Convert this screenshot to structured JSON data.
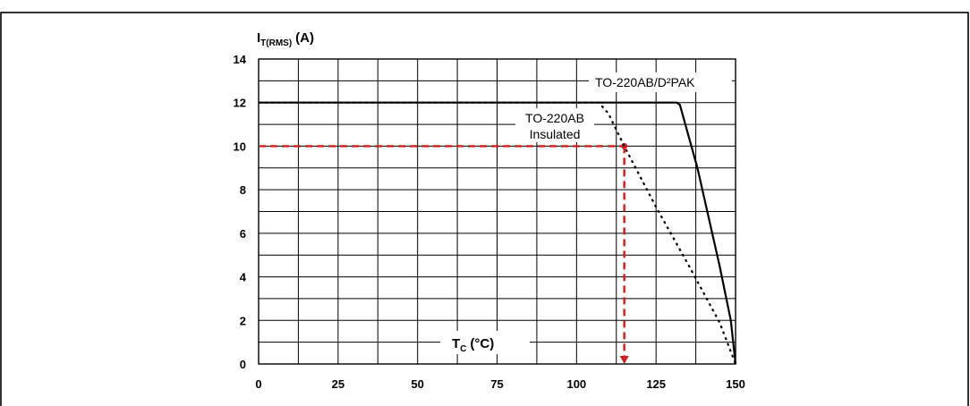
{
  "chart_data": {
    "type": "line",
    "title": "",
    "xlabel": "T",
    "xlabel_sub": "C",
    "xlabel_unit": "(°C)",
    "ylabel": "I",
    "ylabel_sub": "T(RMS)",
    "ylabel_unit": "(A)",
    "xlim": [
      0,
      150
    ],
    "ylim": [
      0,
      14
    ],
    "x_ticks": [
      0,
      25,
      50,
      75,
      100,
      125,
      150
    ],
    "y_ticks": [
      0,
      2,
      4,
      6,
      8,
      10,
      12,
      14
    ],
    "grid": true,
    "series": [
      {
        "name": "TO-220AB/D²PAK",
        "style": "solid",
        "color": "#000000",
        "points": [
          [
            0,
            12
          ],
          [
            131.5,
            12
          ],
          [
            132.5,
            11.9
          ],
          [
            138,
            9
          ],
          [
            145,
            4.5
          ],
          [
            148.5,
            2
          ],
          [
            150,
            0
          ]
        ]
      },
      {
        "name": "TO-220AB Insulated",
        "name_line1": "TO-220AB",
        "name_line2": "Insulated",
        "style": "dotted",
        "color": "#000000",
        "points": [
          [
            0,
            12
          ],
          [
            107,
            12
          ],
          [
            110,
            11.5
          ],
          [
            115,
            10
          ],
          [
            125,
            7.2
          ],
          [
            135,
            4.6
          ],
          [
            145,
            1.9
          ],
          [
            150,
            0
          ]
        ]
      }
    ],
    "annotation": {
      "color": "#cc1f1f",
      "point": [
        115,
        10
      ],
      "horizontal_from_x": 0,
      "vertical_to_y": 0
    }
  }
}
